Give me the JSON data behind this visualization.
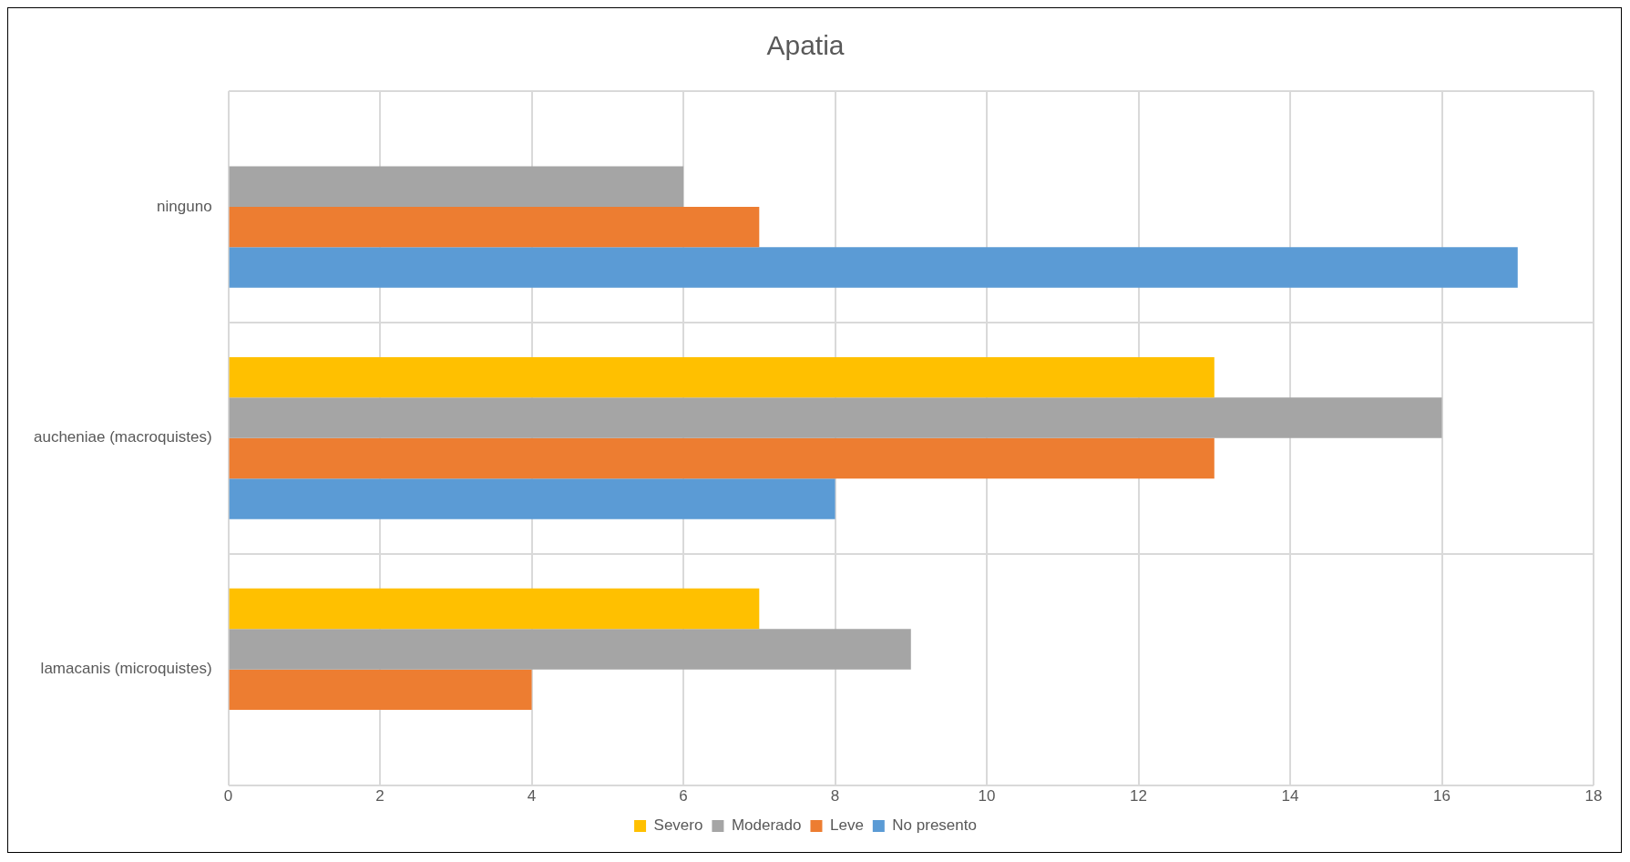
{
  "chart_data": {
    "type": "bar",
    "orientation": "horizontal",
    "title": "Apatia",
    "categories": [
      "ninguno",
      "aucheniae (macroquistes)",
      "lamacanis (microquistes)"
    ],
    "series": [
      {
        "name": "Severo",
        "color": "#ffc000",
        "values": [
          0,
          13,
          7
        ]
      },
      {
        "name": "Moderado",
        "color": "#a5a5a5",
        "values": [
          6,
          16,
          9
        ]
      },
      {
        "name": "Leve",
        "color": "#ed7d31",
        "values": [
          7,
          13,
          4
        ]
      },
      {
        "name": "No presento",
        "color": "#5b9bd5",
        "values": [
          17,
          8,
          0
        ]
      }
    ],
    "xlim": [
      0,
      18
    ],
    "xticks": [
      0,
      2,
      4,
      6,
      8,
      10,
      12,
      14,
      16,
      18
    ],
    "grid": true,
    "legend": "bottom"
  }
}
